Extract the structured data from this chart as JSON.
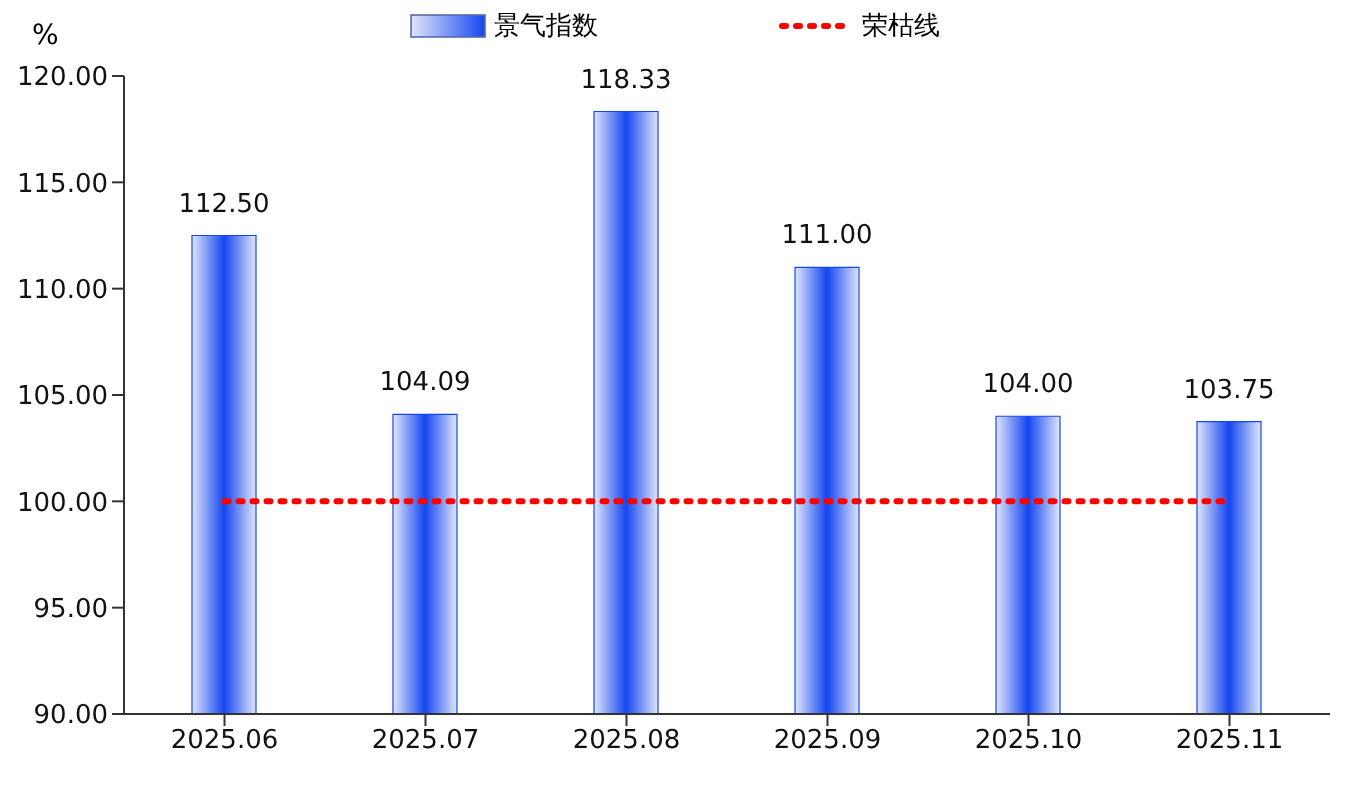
{
  "chart_data": {
    "type": "bar",
    "ylabel": "%",
    "categories": [
      "2025.06",
      "2025.07",
      "2025.08",
      "2025.09",
      "2025.10",
      "2025.11"
    ],
    "series": [
      {
        "name": "景气指数",
        "color": "#1446f0",
        "values": [
          112.5,
          104.09,
          118.33,
          111,
          104,
          103.75
        ],
        "value_labels": [
          "112.50",
          "104.09",
          "118.33",
          "111.00",
          "104.00",
          "103.75"
        ]
      },
      {
        "name": "荣枯线",
        "type": "line",
        "color": "#ff0000",
        "values": [
          100,
          100,
          100,
          100,
          100,
          100
        ],
        "line_style": "dotted",
        "marker": "none"
      }
    ],
    "ylim": [
      90,
      120
    ],
    "yticks": [
      {
        "value": 90,
        "label": "90.00"
      },
      {
        "value": 95,
        "label": "95.00"
      },
      {
        "value": 100,
        "label": "100.00"
      },
      {
        "value": 105,
        "label": "105.00"
      },
      {
        "value": 110,
        "label": "110.00"
      },
      {
        "value": 115,
        "label": "115.00"
      },
      {
        "value": 120,
        "label": "120.00"
      }
    ],
    "grid": false,
    "legend": "top"
  }
}
